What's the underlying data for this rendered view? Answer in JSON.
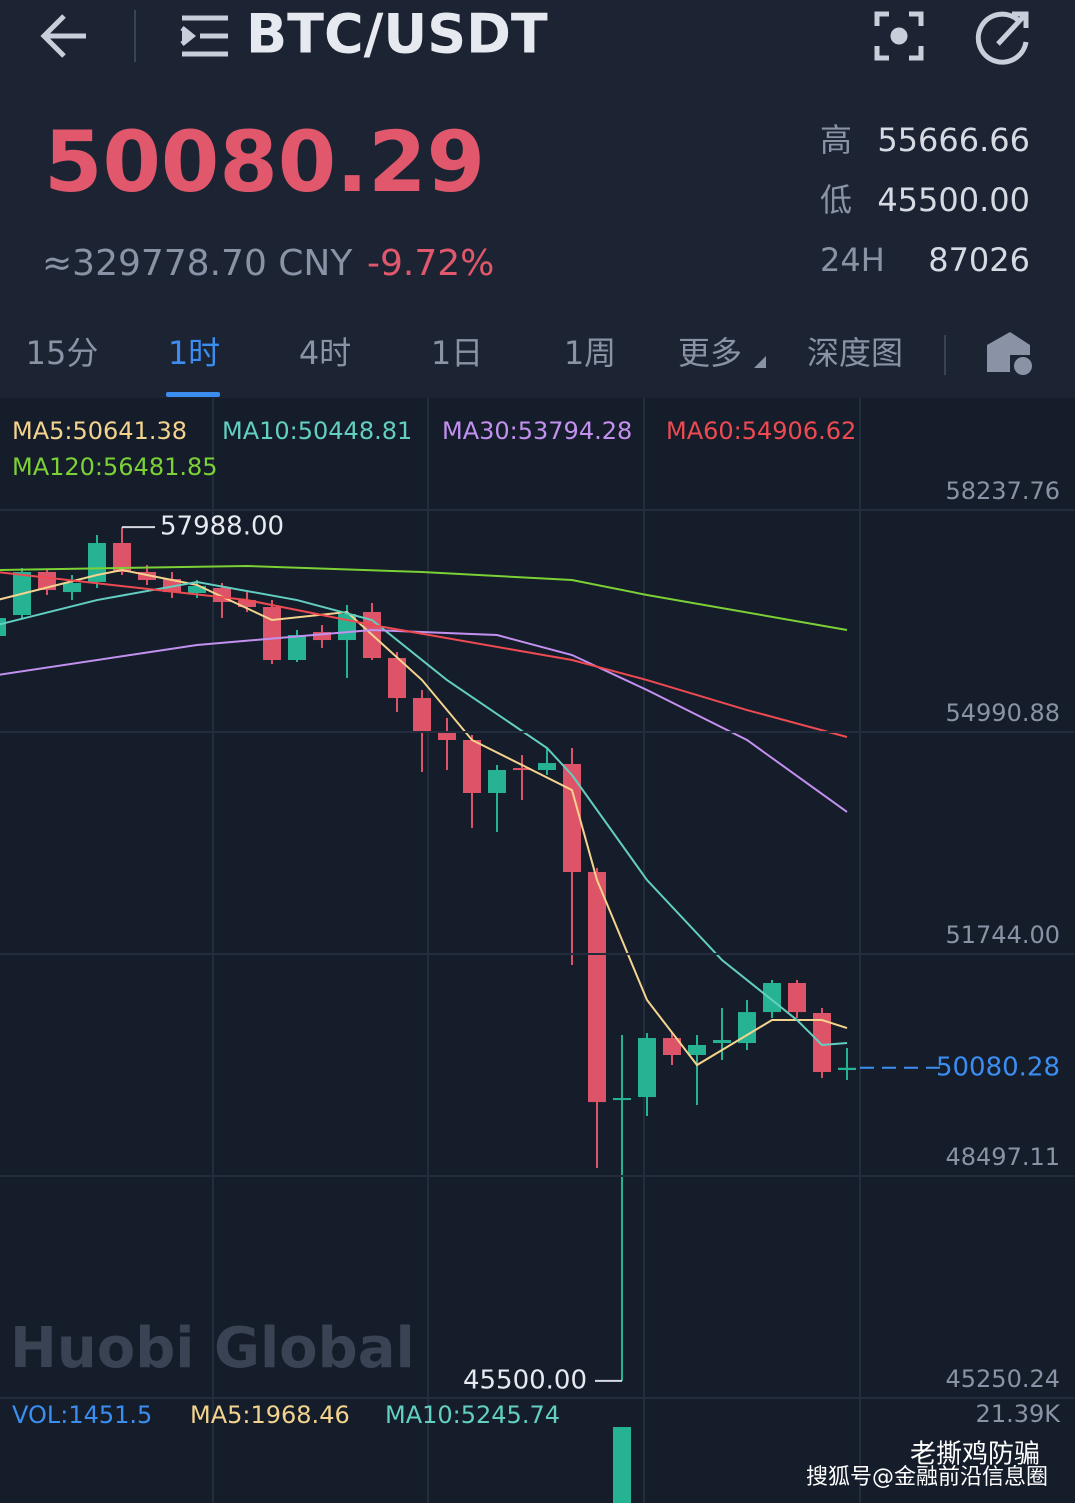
{
  "header": {
    "symbol": "BTC/USDT"
  },
  "ticker": {
    "price": "50080.29",
    "cny": "≈329778.70 CNY",
    "change": "-9.72%",
    "stats": [
      {
        "label": "高",
        "value": "55666.66"
      },
      {
        "label": "低",
        "value": "45500.00"
      },
      {
        "label": "24H",
        "value": "87026"
      }
    ]
  },
  "tabs": [
    "15分",
    "1时",
    "4时",
    "1日",
    "1周",
    "更多",
    "深度图"
  ],
  "ma_legend": [
    "MA5:50641.38",
    "MA10:50448.81",
    "MA30:53794.28",
    "MA60:54906.62",
    "MA120:56481.85"
  ],
  "volume_legend": [
    "VOL:1451.5",
    "MA5:1968.46",
    "MA10:5245.74"
  ],
  "watermark": "Huobi Global",
  "footer": {
    "account": "老撕鸡防骗",
    "source": "搜狐号@金融前沿信息圈"
  },
  "chart_data": {
    "type": "candlestick",
    "ylim": [
      45250.24,
      59876
    ],
    "yticks": [
      58237.76,
      54990.88,
      {
        "value": 51744,
        "label": "51744.00"
      },
      48497.11,
      45250.24
    ],
    "up_color": "#26b394",
    "down_color": "#dd5468",
    "candles": {
      "open": [
        56395,
        56702,
        57331,
        57038,
        57185,
        57755,
        57331,
        57229,
        57024,
        57097,
        56921,
        56819,
        56044,
        56453,
        56336,
        56746,
        56073,
        55488,
        54991,
        54874,
        54099,
        54464,
        54435,
        54523,
        52943,
        49608,
        49652,
        50515,
        50267,
        50442,
        50442,
        50895,
        51320,
        50881,
        50047
      ],
      "high": [
        56775,
        57389,
        57360,
        57287,
        57872,
        57988,
        57433,
        57331,
        57214,
        57170,
        57038,
        56921,
        56483,
        56556,
        56848,
        56878,
        56161,
        55605,
        55196,
        54947,
        54508,
        54654,
        54757,
        54757,
        53002,
        50559,
        50588,
        50588,
        50559,
        50954,
        51071,
        51364,
        51364,
        50954,
        50369
      ],
      "low": [
        56336,
        56658,
        56995,
        56921,
        57097,
        57287,
        57141,
        56951,
        56951,
        56658,
        56746,
        55985,
        56015,
        56219,
        55781,
        56044,
        55283,
        54406,
        54435,
        53587,
        53528,
        53996,
        54362,
        51583,
        48614,
        45500,
        49374,
        50120,
        49535,
        50193,
        50340,
        50808,
        50808,
        49930,
        49901
      ],
      "close": [
        56658,
        57331,
        57068,
        57170,
        57755,
        57331,
        57214,
        57038,
        57126,
        56892,
        56819,
        56044,
        56409,
        56336,
        56717,
        56073,
        55488,
        54991,
        54874,
        54099,
        54435,
        54435,
        54537,
        52943,
        49579,
        49638,
        50515,
        50267,
        50413,
        50486,
        50895,
        51320,
        50895,
        50018,
        50080.28
      ]
    },
    "ma_lines": [
      {
        "color": "#f3d38d",
        "x": [
          0,
          4,
          5,
          8,
          11,
          14,
          17,
          19,
          21,
          23,
          24,
          26,
          28,
          31,
          33,
          34
        ],
        "values": [
          56921,
          57287,
          57360,
          57141,
          56629,
          56746,
          55751,
          54874,
          54508,
          54142,
          52826,
          51071,
          50120,
          50778,
          50778,
          50661
        ]
      },
      {
        "color": "#62cfc1",
        "x": [
          0,
          4,
          8,
          12,
          15,
          18,
          22,
          23,
          26,
          29,
          32,
          33,
          34
        ],
        "values": [
          56556,
          56921,
          57185,
          56921,
          56629,
          55751,
          54757,
          54362,
          52826,
          51656,
          50778,
          50413,
          50442
        ]
      },
      {
        "color": "#c291f0",
        "x": [
          0,
          8,
          15,
          20,
          23,
          26,
          30,
          34
        ],
        "values": [
          55824,
          56263,
          56483,
          56409,
          56117,
          55605,
          54874,
          53821
        ]
      },
      {
        "color": "#ee4a52",
        "x": [
          0,
          10,
          15,
          23,
          26,
          30,
          34
        ],
        "values": [
          57331,
          56921,
          56556,
          56044,
          55751,
          55312,
          54918
        ]
      },
      {
        "color": "#7bd136",
        "x": [
          0,
          10,
          17,
          23,
          26,
          34
        ],
        "values": [
          57360,
          57419,
          57331,
          57214,
          56995,
          56483
        ]
      }
    ],
    "high_label": {
      "value": 57988,
      "label": "57988.00"
    },
    "low_label": {
      "value": 45500,
      "label": "45500.00"
    },
    "last_price": 50080.28,
    "volume": {
      "ylim": [
        0,
        21390
      ],
      "yticks": [
        {
          "value": 21390,
          "label": "21.39K"
        }
      ],
      "index": 25,
      "value": 18470
    }
  }
}
